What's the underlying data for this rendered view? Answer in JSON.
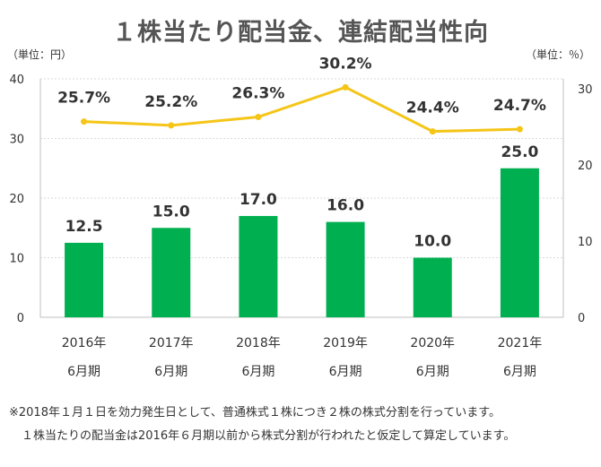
{
  "title": "１株当たり配当金、連結配当性向",
  "left_unit": "（単位：円）",
  "right_unit": "（単位：％）",
  "notes": [
    "※2018年１月１日を効力発生日として、普通株式１株につき２株の株式分割を行っています。",
    "１株当たりの配当金は2016年６月期以前から株式分割が行われたと仮定して算定しています。"
  ],
  "chart_data": {
    "type": "bar+line",
    "categories": [
      [
        "2016年",
        "6月期"
      ],
      [
        "2017年",
        "6月期"
      ],
      [
        "2018年",
        "6月期"
      ],
      [
        "2019年",
        "6月期"
      ],
      [
        "2020年",
        "6月期"
      ],
      [
        "2021年",
        "6月期"
      ]
    ],
    "bar_series": {
      "values": [
        12.5,
        15.0,
        17.0,
        16.0,
        10.0,
        25.0
      ],
      "labels": [
        "12.5",
        "15.0",
        "17.0",
        "16.0",
        "10.0",
        "25.0"
      ],
      "color": "#00b050",
      "axis": "left"
    },
    "line_series": {
      "values": [
        25.7,
        25.2,
        26.3,
        30.2,
        24.4,
        24.7
      ],
      "labels": [
        "25.7%",
        "25.2%",
        "26.3%",
        "30.2%",
        "24.4%",
        "24.7%"
      ],
      "color": "#f5c518",
      "axis": "right"
    },
    "left_axis": {
      "min": 0,
      "max": 40,
      "ticks": [
        0,
        10,
        20,
        30,
        40
      ]
    },
    "right_axis": {
      "min": 0,
      "max": 31.3,
      "ticks": [
        0,
        10,
        20,
        30
      ]
    },
    "grid": true,
    "legend": "none"
  }
}
